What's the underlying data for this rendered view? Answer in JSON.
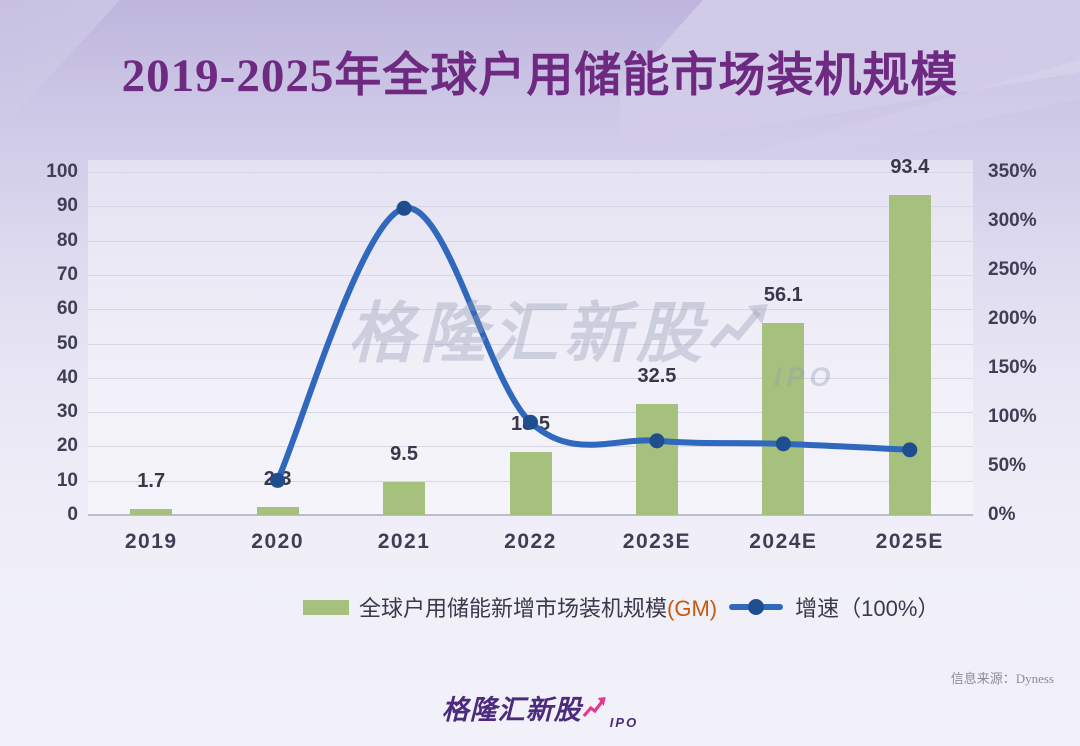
{
  "title": "2019-2025年全球户用储能市场装机规模",
  "watermark": {
    "brand": "格隆汇新股",
    "suffix": "IPO"
  },
  "legend": {
    "bar_label": "全球户用储能新增市场装机规模",
    "bar_label_unit": "(GM)",
    "line_label": "增速（100%）"
  },
  "footer": {
    "brand": "格隆汇新股",
    "brand_suffix": "IPO",
    "source": "信息来源：Dyness"
  },
  "colors": {
    "bar": "#a6c17e",
    "line": "#2f68bd",
    "marker": "#1f4e8e",
    "title": "#6d2a80",
    "gm_unit": "#c55a11",
    "brand_pink": "#e23a8e"
  },
  "chart_data": {
    "type": "bar",
    "combo": "bar+line",
    "title": "2019-2025年全球户用储能市场装机规模",
    "categories": [
      "2019",
      "2020",
      "2021",
      "2022",
      "2023E",
      "2024E",
      "2025E"
    ],
    "series": [
      {
        "name": "全球户用储能新增市场装机规模(GM)",
        "type": "bar",
        "axis": "left",
        "color": "#a6c17e",
        "values": [
          1.7,
          2.3,
          9.5,
          18.5,
          32.5,
          56.1,
          93.4
        ],
        "data_labels": [
          "1.7",
          "2.3",
          "9.5",
          "18.5",
          "32.5",
          "56.1",
          "93.4"
        ]
      },
      {
        "name": "增速（100%）",
        "type": "line",
        "axis": "right",
        "color": "#2f68bd",
        "marker_color": "#1f4e8e",
        "values_pct": [
          null,
          35.3,
          313,
          94.7,
          75.7,
          72.6,
          66.5
        ]
      }
    ],
    "left_axis": {
      "min": 0,
      "max": 100,
      "step": 10
    },
    "right_axis": {
      "min": 0,
      "max": 350,
      "step": 50,
      "suffix": "%"
    },
    "grid": true,
    "legend_position": "bottom"
  }
}
